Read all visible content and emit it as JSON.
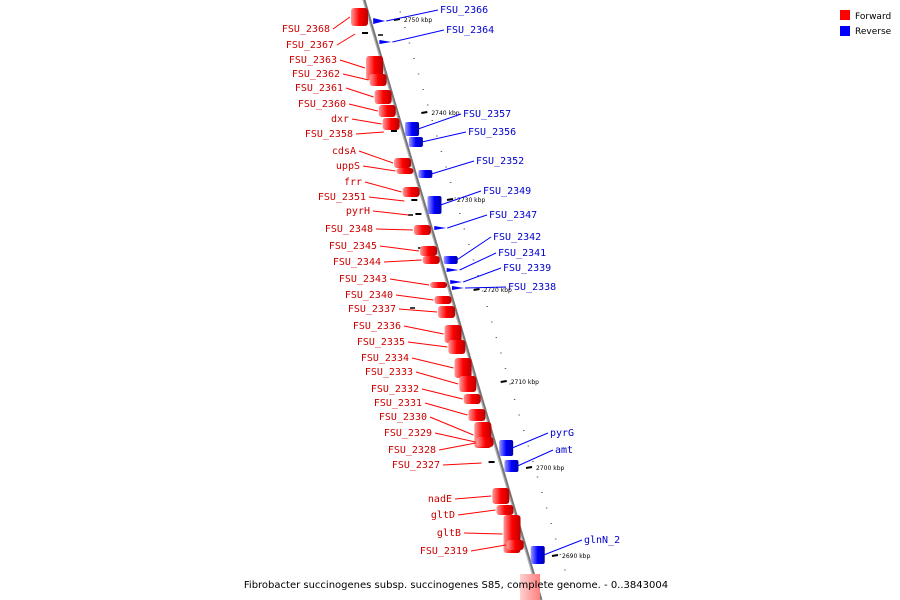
{
  "legend": {
    "forward": {
      "label": "Forward",
      "color": "#ff0000"
    },
    "reverse": {
      "label": "Reverse",
      "color": "#0000ff"
    }
  },
  "footer": "Fibrobacter succinogenes subsp. succinogenes S85, complete genome. - 0..3843004",
  "ticks": [
    {
      "label": "2750 kbp",
      "t": 0.035
    },
    {
      "label": "2740 kbp",
      "t": 0.19
    },
    {
      "label": "2730 kbp",
      "t": 0.345
    },
    {
      "label": "2720 kbp",
      "t": 0.5
    },
    {
      "label": "2710 kbp",
      "t": 0.655
    },
    {
      "label": "2700 kbp",
      "t": 0.81
    },
    {
      "label": "2690 kbp",
      "t": 0.965
    }
  ],
  "forward_genes": [
    "FSU_2368",
    "FSU_2367",
    "FSU_2363",
    "FSU_2362",
    "FSU_2361",
    "FSU_2360",
    "dxr",
    "FSU_2358",
    "cdsA",
    "uppS",
    "frr",
    "FSU_2351",
    "pyrH",
    "FSU_2348",
    "FSU_2345",
    "FSU_2344",
    "FSU_2343",
    "FSU_2340",
    "FSU_2337",
    "FSU_2336",
    "FSU_2335",
    "FSU_2334",
    "FSU_2333",
    "FSU_2332",
    "FSU_2331",
    "FSU_2330",
    "FSU_2329",
    "FSU_2328",
    "FSU_2327",
    "nadE",
    "gltD",
    "gltB",
    "FSU_2319"
  ],
  "reverse_genes": [
    "FSU_2366",
    "FSU_2364",
    "FSU_2357",
    "FSU_2356",
    "FSU_2352",
    "FSU_2349",
    "FSU_2347",
    "FSU_2342",
    "FSU_2341",
    "FSU_2339",
    "FSU_2338",
    "pyrG",
    "amt",
    "glnN_2"
  ]
}
